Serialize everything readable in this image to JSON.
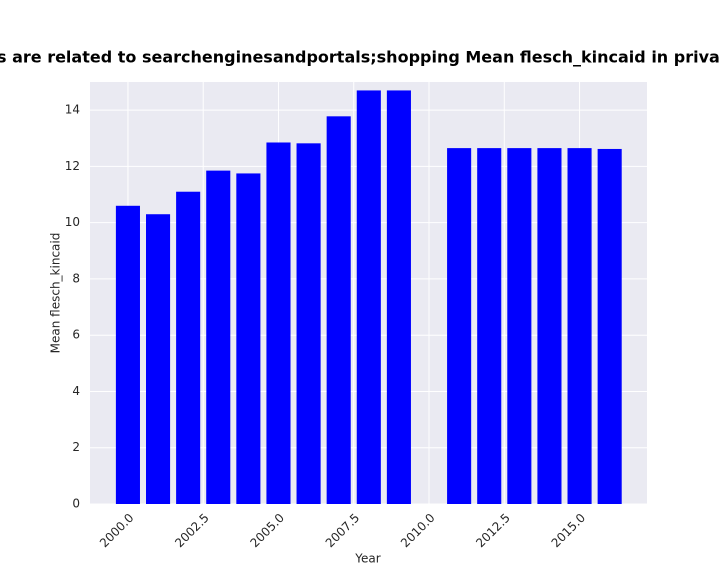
{
  "chart_data": {
    "type": "bar",
    "title": "tegories are related to searchenginesandportals;shopping Mean flesch_kincaid in privacy polic",
    "xlabel": "Year",
    "ylabel": "Mean flesch_kincaid",
    "x": [
      2000,
      2001,
      2002,
      2003,
      2004,
      2005,
      2006,
      2007,
      2008,
      2009,
      2011,
      2012,
      2013,
      2014,
      2015,
      2016
    ],
    "values": [
      10.6,
      10.3,
      11.1,
      11.85,
      11.75,
      12.85,
      12.82,
      13.78,
      14.7,
      14.7,
      12.65,
      12.65,
      12.65,
      12.65,
      12.65,
      12.62
    ],
    "color": "#0000ff",
    "xlim": [
      1998.74,
      2017.24
    ],
    "xticks": [
      {
        "value": 2000,
        "label": "2000.0"
      },
      {
        "value": 2002.5,
        "label": "2002.5"
      },
      {
        "value": 2005,
        "label": "2005.0"
      },
      {
        "value": 2007.5,
        "label": "2007.5"
      },
      {
        "value": 2010,
        "label": "2010.0"
      },
      {
        "value": 2012.5,
        "label": "2012.5"
      },
      {
        "value": 2015,
        "label": "2015.0"
      }
    ],
    "ylim": [
      0,
      15
    ],
    "yticks": [
      0,
      2,
      4,
      6,
      8,
      10,
      12,
      14
    ],
    "grid": true
  }
}
